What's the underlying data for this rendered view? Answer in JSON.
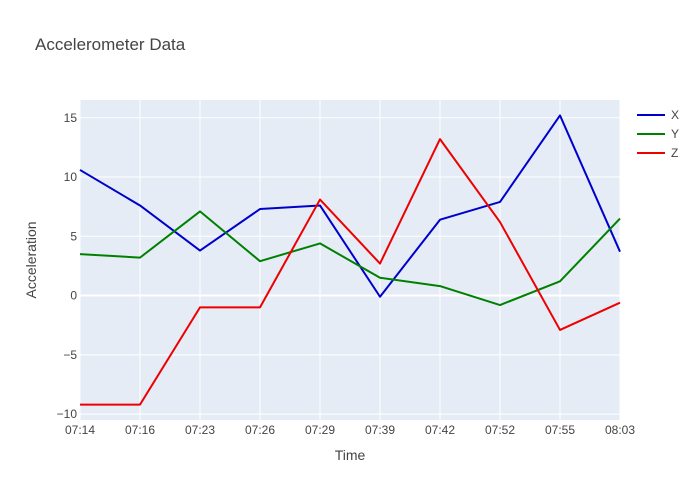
{
  "chart_data": {
    "type": "line",
    "title": "Accelerometer Data",
    "xlabel": "Time",
    "ylabel": "Acceleration",
    "categories": [
      "07:14",
      "07:16",
      "07:23",
      "07:26",
      "07:29",
      "07:39",
      "07:42",
      "07:52",
      "07:55",
      "08:03"
    ],
    "ylim": [
      -10.5,
      16.5
    ],
    "yticks": [
      -10,
      -5,
      0,
      5,
      10,
      15
    ],
    "ytick_labels": [
      "−10",
      "−5",
      "0",
      "5",
      "10",
      "15"
    ],
    "grid": true,
    "legend_position": "top-right",
    "plot_background": "#e5ecf6",
    "series": [
      {
        "name": "X",
        "color": "#0000cc",
        "values": [
          10.6,
          7.6,
          3.8,
          7.3,
          7.6,
          -0.1,
          6.4,
          7.9,
          15.2,
          3.7
        ]
      },
      {
        "name": "Y",
        "color": "#008000",
        "values": [
          3.5,
          3.2,
          7.1,
          2.9,
          4.4,
          1.5,
          0.8,
          -0.8,
          1.2,
          6.5
        ]
      },
      {
        "name": "Z",
        "color": "#ee0000",
        "values": [
          -9.2,
          -9.2,
          -1.0,
          -1.0,
          8.1,
          2.7,
          13.2,
          6.2,
          -2.9,
          -0.6
        ]
      }
    ]
  }
}
